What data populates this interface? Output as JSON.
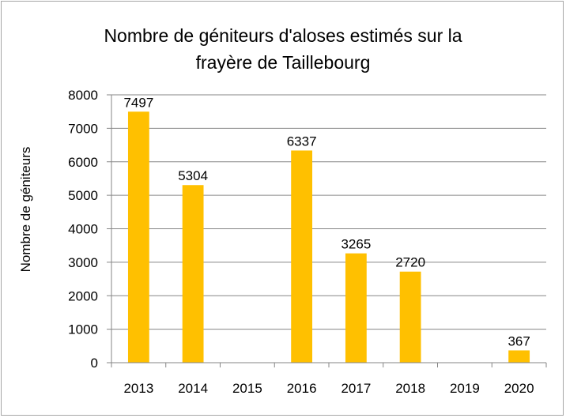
{
  "chart_data": {
    "type": "bar",
    "title_lines": [
      "Nombre de géniteurs d'aloses estimés sur la",
      "frayère de Taillebourg"
    ],
    "ylabel": "Nombre de géniteurs",
    "xlabel": "",
    "categories": [
      "2013",
      "2014",
      "2015",
      "2016",
      "2017",
      "2018",
      "2019",
      "2020"
    ],
    "values": [
      7497,
      5304,
      null,
      6337,
      3265,
      2720,
      null,
      367
    ],
    "data_labels": [
      "7497",
      "5304",
      "",
      "6337",
      "3265",
      "2720",
      "",
      "367"
    ],
    "ylim": [
      0,
      8000
    ],
    "yticks": [
      0,
      1000,
      2000,
      3000,
      4000,
      5000,
      6000,
      7000,
      8000
    ],
    "grid": true,
    "legend": "none",
    "bar_color": "#FFC000",
    "grid_color": "#868686"
  }
}
